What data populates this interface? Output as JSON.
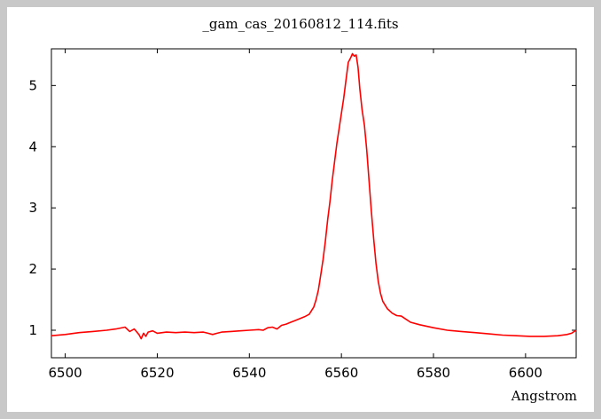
{
  "chart_data": {
    "type": "line",
    "title": "_gam_cas_20160812_114.fits",
    "xlabel": "Angstrom",
    "ylabel": "",
    "xlim": [
      6497,
      6611
    ],
    "ylim": [
      0.55,
      5.6
    ],
    "xticks": [
      6500,
      6520,
      6540,
      6560,
      6580,
      6600
    ],
    "yticks": [
      1,
      2,
      3,
      4,
      5
    ],
    "grid": false,
    "legend": "none",
    "series": [
      {
        "color": "#ff0000",
        "x": [
          6497,
          6500,
          6503,
          6506,
          6509,
          6511,
          6513,
          6514,
          6515,
          6516,
          6516.5,
          6517,
          6517.5,
          6518,
          6519,
          6520,
          6522,
          6524,
          6526,
          6528,
          6530,
          6531,
          6532,
          6533,
          6534,
          6536,
          6538,
          6540,
          6542,
          6543,
          6544,
          6545,
          6546,
          6547,
          6548,
          6549,
          6550,
          6551,
          6552,
          6553,
          6554,
          6554.5,
          6555,
          6555.5,
          6556,
          6556.5,
          6557,
          6557.5,
          6558,
          6558.5,
          6559,
          6559.5,
          6560,
          6560.5,
          6561,
          6561.5,
          6562,
          6562.4,
          6562.8,
          6563.2,
          6563.6,
          6564,
          6564.5,
          6565,
          6565.5,
          6566,
          6566.5,
          6567,
          6567.5,
          6568,
          6568.5,
          6569,
          6570,
          6571,
          6572,
          6573,
          6574,
          6575,
          6577,
          6580,
          6583,
          6586,
          6589,
          6592,
          6595,
          6598,
          6601,
          6604,
          6607,
          6609,
          6610,
          6611
        ],
        "y": [
          0.91,
          0.93,
          0.96,
          0.98,
          1.0,
          1.02,
          1.05,
          0.98,
          1.02,
          0.93,
          0.86,
          0.95,
          0.9,
          0.97,
          0.99,
          0.95,
          0.97,
          0.96,
          0.97,
          0.96,
          0.97,
          0.95,
          0.93,
          0.95,
          0.97,
          0.98,
          0.99,
          1.0,
          1.01,
          1.0,
          1.04,
          1.05,
          1.02,
          1.08,
          1.1,
          1.13,
          1.16,
          1.19,
          1.22,
          1.26,
          1.38,
          1.5,
          1.66,
          1.9,
          2.15,
          2.45,
          2.8,
          3.1,
          3.45,
          3.75,
          4.05,
          4.3,
          4.55,
          4.8,
          5.1,
          5.38,
          5.45,
          5.52,
          5.48,
          5.5,
          5.3,
          4.95,
          4.6,
          4.35,
          3.95,
          3.45,
          2.95,
          2.5,
          2.1,
          1.8,
          1.6,
          1.47,
          1.35,
          1.28,
          1.24,
          1.23,
          1.18,
          1.13,
          1.09,
          1.04,
          1.0,
          0.98,
          0.96,
          0.94,
          0.92,
          0.91,
          0.9,
          0.9,
          0.91,
          0.93,
          0.95,
          1.0
        ]
      }
    ]
  }
}
